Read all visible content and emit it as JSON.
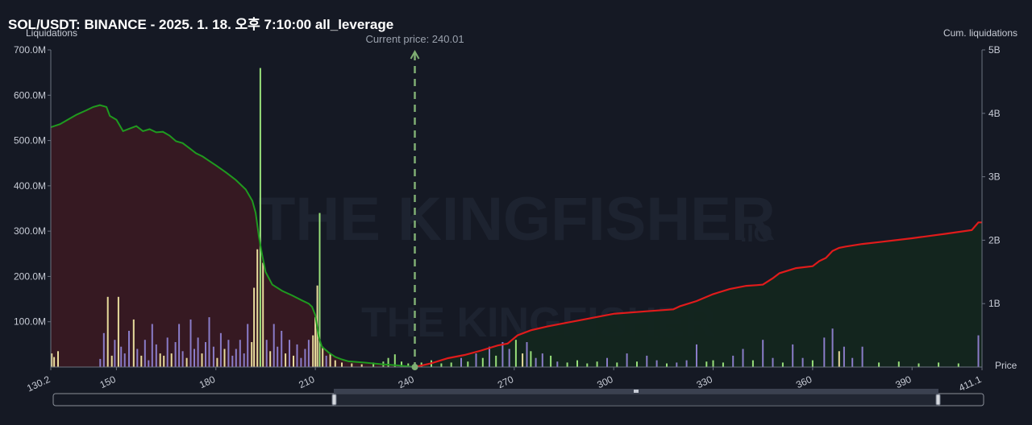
{
  "title": "SOL/USDT: BINANCE - 2025. 1. 18. 오후 7:10:00 all_leverage",
  "watermark": {
    "brand": "THE KINGFISHER",
    "suffix": ".IO"
  },
  "colors": {
    "background": "#151924",
    "short_cum_line": "#1f9a1f",
    "long_cum_line": "#e01b1b",
    "short_fill": "#3a1a22",
    "long_fill": "#13261f",
    "bar_yellow": "#e8dc9c",
    "bar_purple": "#8a7cc8",
    "bar_green": "#98e07a",
    "current_price_line": "#7fae73"
  },
  "chart_data": {
    "type": "bar",
    "ylabel_left": "Liquidations",
    "ylabel_right": "Cum. liquidations",
    "xlabel": "Price",
    "current_price_label": "Current price: 240.01",
    "current_price": 240.01,
    "xlim": [
      130.2,
      411.1
    ],
    "ylim_left": [
      0,
      700000000
    ],
    "ylim_right": [
      0,
      5000000000
    ],
    "y_ticks_left": [
      "100.0M",
      "200.0M",
      "300.0M",
      "400.0M",
      "500.0M",
      "600.0M",
      "700.0M"
    ],
    "y_ticks_right": [
      "1B",
      "2B",
      "3B",
      "4B",
      "5B"
    ],
    "x_tick_values": [
      130.2,
      150,
      180,
      210,
      240,
      270,
      300,
      330,
      360,
      390,
      411.1
    ],
    "x_tick_labels": [
      "130.2",
      "150",
      "180",
      "210",
      "240",
      "270",
      "300",
      "330",
      "360",
      "390",
      "411.1"
    ],
    "grid": false,
    "short_cumulative": {
      "x": [
        130.2,
        133,
        136,
        138,
        141,
        143,
        145,
        147,
        148,
        150,
        152,
        154,
        156,
        158,
        160,
        162,
        164,
        166,
        168,
        170,
        172,
        174,
        176,
        178,
        180,
        183,
        186,
        189,
        191,
        192,
        193,
        194,
        195,
        197,
        200,
        203,
        206,
        208,
        209,
        210,
        211,
        212,
        214,
        216,
        218,
        220,
        225,
        230,
        235,
        240
      ],
      "y": [
        3780000000,
        3830000000,
        3920000000,
        3980000000,
        4050000000,
        4100000000,
        4130000000,
        4100000000,
        3960000000,
        3900000000,
        3720000000,
        3760000000,
        3800000000,
        3720000000,
        3750000000,
        3700000000,
        3710000000,
        3650000000,
        3560000000,
        3530000000,
        3450000000,
        3370000000,
        3320000000,
        3250000000,
        3180000000,
        3070000000,
        2950000000,
        2800000000,
        2620000000,
        2430000000,
        2050000000,
        1760000000,
        1500000000,
        1300000000,
        1200000000,
        1130000000,
        1050000000,
        1000000000,
        950000000,
        820000000,
        480000000,
        320000000,
        230000000,
        160000000,
        120000000,
        90000000,
        70000000,
        45000000,
        25000000,
        0
      ]
    },
    "long_cumulative": {
      "x": [
        240,
        245,
        250,
        255,
        260,
        265,
        268,
        271,
        275,
        280,
        285,
        290,
        300,
        310,
        318,
        320,
        325,
        330,
        335,
        340,
        343,
        345,
        348,
        350,
        355,
        360,
        362,
        364,
        366,
        368,
        370,
        375,
        380,
        390,
        400,
        408,
        410,
        411.1
      ],
      "y": [
        0,
        60000000,
        140000000,
        190000000,
        260000000,
        340000000,
        370000000,
        500000000,
        580000000,
        640000000,
        690000000,
        740000000,
        840000000,
        880000000,
        910000000,
        960000000,
        1040000000,
        1150000000,
        1230000000,
        1280000000,
        1290000000,
        1300000000,
        1400000000,
        1480000000,
        1560000000,
        1590000000,
        1670000000,
        1720000000,
        1830000000,
        1880000000,
        1900000000,
        1940000000,
        1970000000,
        2030000000,
        2100000000,
        2160000000,
        2280000000,
        2280000000
      ]
    },
    "bars": [
      {
        "x": 130.5,
        "v": 30000000,
        "c": "y"
      },
      {
        "x": 131.2,
        "v": 22000000,
        "c": "y"
      },
      {
        "x": 132.4,
        "v": 35000000,
        "c": "y"
      },
      {
        "x": 145.1,
        "v": 18000000,
        "c": "p"
      },
      {
        "x": 146.2,
        "v": 75000000,
        "c": "p"
      },
      {
        "x": 147.4,
        "v": 155000000,
        "c": "y"
      },
      {
        "x": 148.6,
        "v": 25000000,
        "c": "y"
      },
      {
        "x": 149.5,
        "v": 60000000,
        "c": "p"
      },
      {
        "x": 150.6,
        "v": 155000000,
        "c": "y"
      },
      {
        "x": 151.4,
        "v": 45000000,
        "c": "p"
      },
      {
        "x": 152.5,
        "v": 30000000,
        "c": "p"
      },
      {
        "x": 153.8,
        "v": 80000000,
        "c": "p"
      },
      {
        "x": 155.2,
        "v": 105000000,
        "c": "y"
      },
      {
        "x": 156.3,
        "v": 40000000,
        "c": "p"
      },
      {
        "x": 157.5,
        "v": 25000000,
        "c": "y"
      },
      {
        "x": 158.6,
        "v": 60000000,
        "c": "p"
      },
      {
        "x": 159.7,
        "v": 15000000,
        "c": "p"
      },
      {
        "x": 160.8,
        "v": 95000000,
        "c": "p"
      },
      {
        "x": 162.0,
        "v": 50000000,
        "c": "p"
      },
      {
        "x": 163.2,
        "v": 30000000,
        "c": "y"
      },
      {
        "x": 164.3,
        "v": 25000000,
        "c": "y"
      },
      {
        "x": 165.4,
        "v": 65000000,
        "c": "p"
      },
      {
        "x": 166.6,
        "v": 30000000,
        "c": "y"
      },
      {
        "x": 167.8,
        "v": 55000000,
        "c": "p"
      },
      {
        "x": 168.9,
        "v": 95000000,
        "c": "p"
      },
      {
        "x": 170.0,
        "v": 35000000,
        "c": "p"
      },
      {
        "x": 171.2,
        "v": 20000000,
        "c": "y"
      },
      {
        "x": 172.4,
        "v": 105000000,
        "c": "p"
      },
      {
        "x": 173.5,
        "v": 40000000,
        "c": "p"
      },
      {
        "x": 174.6,
        "v": 65000000,
        "c": "p"
      },
      {
        "x": 175.8,
        "v": 30000000,
        "c": "y"
      },
      {
        "x": 176.9,
        "v": 55000000,
        "c": "p"
      },
      {
        "x": 178.0,
        "v": 110000000,
        "c": "p"
      },
      {
        "x": 179.3,
        "v": 45000000,
        "c": "p"
      },
      {
        "x": 180.4,
        "v": 20000000,
        "c": "y"
      },
      {
        "x": 181.5,
        "v": 75000000,
        "c": "p"
      },
      {
        "x": 182.6,
        "v": 40000000,
        "c": "y"
      },
      {
        "x": 183.8,
        "v": 60000000,
        "c": "p"
      },
      {
        "x": 185.0,
        "v": 25000000,
        "c": "p"
      },
      {
        "x": 186.1,
        "v": 40000000,
        "c": "p"
      },
      {
        "x": 187.3,
        "v": 60000000,
        "c": "p"
      },
      {
        "x": 188.5,
        "v": 30000000,
        "c": "p"
      },
      {
        "x": 189.6,
        "v": 95000000,
        "c": "p"
      },
      {
        "x": 190.8,
        "v": 55000000,
        "c": "y"
      },
      {
        "x": 191.5,
        "v": 175000000,
        "c": "y"
      },
      {
        "x": 192.5,
        "v": 260000000,
        "c": "y"
      },
      {
        "x": 193.4,
        "v": 660000000,
        "c": "g"
      },
      {
        "x": 194.2,
        "v": 230000000,
        "c": "y"
      },
      {
        "x": 195.3,
        "v": 60000000,
        "c": "p"
      },
      {
        "x": 196.4,
        "v": 35000000,
        "c": "y"
      },
      {
        "x": 197.5,
        "v": 95000000,
        "c": "p"
      },
      {
        "x": 198.6,
        "v": 45000000,
        "c": "p"
      },
      {
        "x": 199.8,
        "v": 80000000,
        "c": "p"
      },
      {
        "x": 201.0,
        "v": 30000000,
        "c": "y"
      },
      {
        "x": 202.2,
        "v": 60000000,
        "c": "p"
      },
      {
        "x": 203.4,
        "v": 25000000,
        "c": "y"
      },
      {
        "x": 204.5,
        "v": 50000000,
        "c": "p"
      },
      {
        "x": 205.7,
        "v": 20000000,
        "c": "p"
      },
      {
        "x": 206.9,
        "v": 40000000,
        "c": "p"
      },
      {
        "x": 208.0,
        "v": 60000000,
        "c": "p"
      },
      {
        "x": 209.3,
        "v": 70000000,
        "c": "y"
      },
      {
        "x": 210.0,
        "v": 110000000,
        "c": "y"
      },
      {
        "x": 210.6,
        "v": 180000000,
        "c": "y"
      },
      {
        "x": 211.3,
        "v": 340000000,
        "c": "g"
      },
      {
        "x": 212.2,
        "v": 45000000,
        "c": "y"
      },
      {
        "x": 213.3,
        "v": 25000000,
        "c": "p"
      },
      {
        "x": 214.5,
        "v": 30000000,
        "c": "y"
      },
      {
        "x": 216.0,
        "v": 15000000,
        "c": "y"
      },
      {
        "x": 218.0,
        "v": 10000000,
        "c": "y"
      },
      {
        "x": 221.0,
        "v": 8000000,
        "c": "y"
      },
      {
        "x": 224.0,
        "v": 6000000,
        "c": "y"
      },
      {
        "x": 227.5,
        "v": 10000000,
        "c": "g"
      },
      {
        "x": 230.5,
        "v": 12000000,
        "c": "g"
      },
      {
        "x": 232.0,
        "v": 20000000,
        "c": "g"
      },
      {
        "x": 234.0,
        "v": 28000000,
        "c": "g"
      },
      {
        "x": 236.0,
        "v": 12000000,
        "c": "g"
      },
      {
        "x": 238.0,
        "v": 8000000,
        "c": "g"
      },
      {
        "x": 242.0,
        "v": 10000000,
        "c": "g"
      },
      {
        "x": 245.0,
        "v": 15000000,
        "c": "g"
      },
      {
        "x": 248.0,
        "v": 8000000,
        "c": "g"
      },
      {
        "x": 251.0,
        "v": 10000000,
        "c": "g"
      },
      {
        "x": 254.0,
        "v": 20000000,
        "c": "p"
      },
      {
        "x": 256.0,
        "v": 12000000,
        "c": "g"
      },
      {
        "x": 258.5,
        "v": 30000000,
        "c": "p"
      },
      {
        "x": 260.5,
        "v": 20000000,
        "c": "g"
      },
      {
        "x": 262.5,
        "v": 45000000,
        "c": "p"
      },
      {
        "x": 264.5,
        "v": 25000000,
        "c": "g"
      },
      {
        "x": 266.5,
        "v": 55000000,
        "c": "p"
      },
      {
        "x": 268.5,
        "v": 40000000,
        "c": "p"
      },
      {
        "x": 270.5,
        "v": 60000000,
        "c": "g"
      },
      {
        "x": 272.5,
        "v": 30000000,
        "c": "y"
      },
      {
        "x": 273.8,
        "v": 55000000,
        "c": "p"
      },
      {
        "x": 275.0,
        "v": 35000000,
        "c": "g"
      },
      {
        "x": 276.5,
        "v": 20000000,
        "c": "p"
      },
      {
        "x": 278.5,
        "v": 30000000,
        "c": "p"
      },
      {
        "x": 281.0,
        "v": 25000000,
        "c": "g"
      },
      {
        "x": 283.0,
        "v": 12000000,
        "c": "p"
      },
      {
        "x": 286.0,
        "v": 10000000,
        "c": "g"
      },
      {
        "x": 289.0,
        "v": 15000000,
        "c": "g"
      },
      {
        "x": 292.0,
        "v": 8000000,
        "c": "g"
      },
      {
        "x": 295.0,
        "v": 12000000,
        "c": "g"
      },
      {
        "x": 298.0,
        "v": 20000000,
        "c": "p"
      },
      {
        "x": 301.0,
        "v": 10000000,
        "c": "g"
      },
      {
        "x": 304.0,
        "v": 30000000,
        "c": "p"
      },
      {
        "x": 307.0,
        "v": 12000000,
        "c": "g"
      },
      {
        "x": 310.0,
        "v": 25000000,
        "c": "p"
      },
      {
        "x": 313.0,
        "v": 15000000,
        "c": "p"
      },
      {
        "x": 316.0,
        "v": 8000000,
        "c": "g"
      },
      {
        "x": 319.0,
        "v": 10000000,
        "c": "p"
      },
      {
        "x": 322.0,
        "v": 15000000,
        "c": "p"
      },
      {
        "x": 325.0,
        "v": 50000000,
        "c": "p"
      },
      {
        "x": 328.0,
        "v": 12000000,
        "c": "g"
      },
      {
        "x": 330.0,
        "v": 15000000,
        "c": "g"
      },
      {
        "x": 333.0,
        "v": 10000000,
        "c": "g"
      },
      {
        "x": 336.0,
        "v": 25000000,
        "c": "p"
      },
      {
        "x": 339.0,
        "v": 40000000,
        "c": "p"
      },
      {
        "x": 342.0,
        "v": 15000000,
        "c": "g"
      },
      {
        "x": 345.0,
        "v": 60000000,
        "c": "p"
      },
      {
        "x": 348.0,
        "v": 20000000,
        "c": "p"
      },
      {
        "x": 351.0,
        "v": 10000000,
        "c": "g"
      },
      {
        "x": 354.0,
        "v": 50000000,
        "c": "p"
      },
      {
        "x": 357.0,
        "v": 20000000,
        "c": "p"
      },
      {
        "x": 360.0,
        "v": 15000000,
        "c": "g"
      },
      {
        "x": 363.5,
        "v": 65000000,
        "c": "p"
      },
      {
        "x": 366.0,
        "v": 85000000,
        "c": "p"
      },
      {
        "x": 368.0,
        "v": 35000000,
        "c": "y"
      },
      {
        "x": 369.5,
        "v": 45000000,
        "c": "p"
      },
      {
        "x": 372.0,
        "v": 20000000,
        "c": "p"
      },
      {
        "x": 375.0,
        "v": 45000000,
        "c": "p"
      },
      {
        "x": 380.0,
        "v": 10000000,
        "c": "g"
      },
      {
        "x": 386.0,
        "v": 12000000,
        "c": "g"
      },
      {
        "x": 392.0,
        "v": 8000000,
        "c": "g"
      },
      {
        "x": 398.0,
        "v": 10000000,
        "c": "g"
      },
      {
        "x": 404.0,
        "v": 8000000,
        "c": "g"
      },
      {
        "x": 410.0,
        "v": 70000000,
        "c": "p"
      }
    ]
  }
}
